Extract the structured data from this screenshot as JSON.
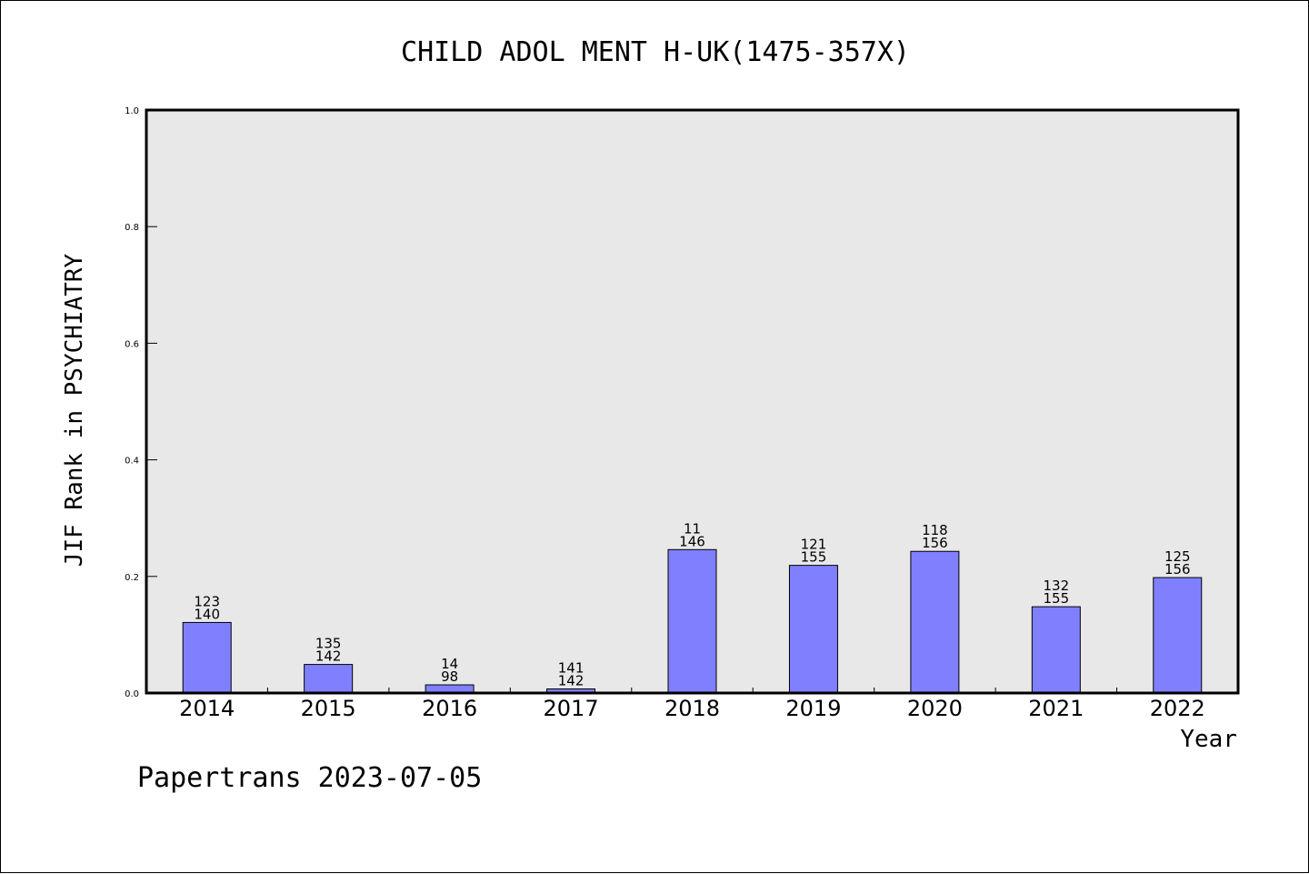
{
  "chart_data": {
    "type": "bar",
    "title": "CHILD ADOL MENT H-UK(1475-357X)",
    "xlabel": "Year",
    "ylabel": "JIF Rank in PSYCHIATRY",
    "ylim": [
      0,
      1.0
    ],
    "yticks": [
      "0.0",
      "0.2",
      "0.4",
      "0.6",
      "0.8",
      "1.0"
    ],
    "grid": false,
    "categories": [
      "2014",
      "2015",
      "2016",
      "2017",
      "2018",
      "2019",
      "2020",
      "2021",
      "2022"
    ],
    "values": [
      0.121,
      0.049,
      0.014,
      0.007,
      0.246,
      0.219,
      0.243,
      0.148,
      0.198
    ],
    "labels_top": [
      "123",
      "135",
      "14",
      "141",
      "11",
      "121",
      "118",
      "132",
      "125"
    ],
    "labels_bottom": [
      "140",
      "142",
      "98",
      "142",
      "146",
      "155",
      "156",
      "155",
      "156"
    ],
    "bar_color": "#8080ff",
    "plot_background": "#e8e8e8"
  },
  "footer": "Papertrans 2023-07-05"
}
